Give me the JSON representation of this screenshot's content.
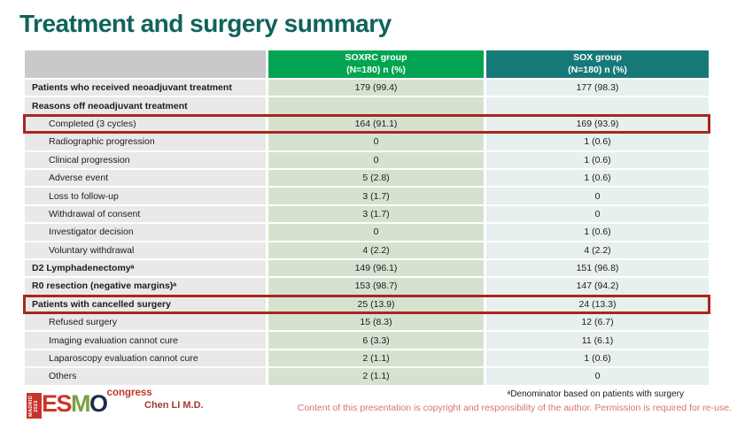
{
  "title": "Treatment and surgery summary",
  "table": {
    "columns": [
      {
        "line1": "SOXRC group",
        "line2": "(N=180)  n (%)"
      },
      {
        "line1": "SOX group",
        "line2": "(N=180)  n (%)"
      }
    ],
    "rows": [
      {
        "label": "Patients who received neoadjuvant treatment",
        "soxrc": "179 (99.4)",
        "sox": "177 (98.3)",
        "bold": true,
        "indent": false,
        "boxed": false
      },
      {
        "label": "Reasons off neoadjuvant treatment",
        "soxrc": "",
        "sox": "",
        "bold": true,
        "indent": false,
        "boxed": false
      },
      {
        "label": "Completed (3 cycles)",
        "soxrc": "164 (91.1)",
        "sox": "169 (93.9)",
        "bold": false,
        "indent": true,
        "boxed": true
      },
      {
        "label": "Radiographic progression",
        "soxrc": "0",
        "sox": "1 (0.6)",
        "bold": false,
        "indent": true,
        "boxed": false
      },
      {
        "label": "Clinical progression",
        "soxrc": "0",
        "sox": "1 (0.6)",
        "bold": false,
        "indent": true,
        "boxed": false
      },
      {
        "label": "Adverse event",
        "soxrc": "5 (2.8)",
        "sox": "1 (0.6)",
        "bold": false,
        "indent": true,
        "boxed": false
      },
      {
        "label": "Loss to follow-up",
        "soxrc": "3 (1.7)",
        "sox": "0",
        "bold": false,
        "indent": true,
        "boxed": false
      },
      {
        "label": "Withdrawal of consent",
        "soxrc": "3 (1.7)",
        "sox": "0",
        "bold": false,
        "indent": true,
        "boxed": false
      },
      {
        "label": "Investigator decision",
        "soxrc": "0",
        "sox": "1 (0.6)",
        "bold": false,
        "indent": true,
        "boxed": false
      },
      {
        "label": "Voluntary withdrawal",
        "soxrc": "4 (2.2)",
        "sox": "4 (2.2)",
        "bold": false,
        "indent": true,
        "boxed": false
      },
      {
        "label": "D2 Lymphadenectomyᵃ",
        "soxrc": "149 (96.1)",
        "sox": "151 (96.8)",
        "bold": true,
        "indent": false,
        "boxed": false
      },
      {
        "label": "R0 resection (negative margins)ᵃ",
        "soxrc": "153 (98.7)",
        "sox": "147 (94.2)",
        "bold": true,
        "indent": false,
        "boxed": false
      },
      {
        "label": "Patients with cancelled surgery",
        "soxrc": "25 (13.9)",
        "sox": "24 (13.3)",
        "bold": true,
        "indent": false,
        "boxed": true
      },
      {
        "label": "Refused surgery",
        "soxrc": "15 (8.3)",
        "sox": "12 (6.7)",
        "bold": false,
        "indent": true,
        "boxed": false
      },
      {
        "label": "Imaging evaluation cannot cure",
        "soxrc": "6 (3.3)",
        "sox": "11 (6.1)",
        "bold": false,
        "indent": true,
        "boxed": false
      },
      {
        "label": "Laparoscopy evaluation cannot cure",
        "soxrc": "2 (1.1)",
        "sox": "1 (0.6)",
        "bold": false,
        "indent": true,
        "boxed": false
      },
      {
        "label": "Others",
        "soxrc": "2 (1.1)",
        "sox": "0",
        "bold": false,
        "indent": true,
        "boxed": false
      }
    ]
  },
  "footer": {
    "logo": {
      "madrid_line1": "MADRID",
      "madrid_line2": "2023",
      "congress": "congress",
      "esmo_letters": [
        {
          "ch": "E",
          "color": "#cd3529"
        },
        {
          "ch": "S",
          "color": "#cd3529"
        },
        {
          "ch": "M",
          "color": "#76a23e"
        },
        {
          "ch": "O",
          "color": "#1e2c4f"
        }
      ]
    },
    "presenter": "Chen LI M.D.",
    "footnote": "ᵃDenominator based on patients with surgery",
    "copyright": "Content of this presentation is copyright and responsibility of the author. Permission is required for re-use."
  },
  "colors": {
    "title": "#0f635a",
    "header_soxrc": "#02a451",
    "header_sox": "#177878",
    "header_label": "#c9c9c9",
    "cell_label": "#e9e9e9",
    "cell_soxrc": "#d6e2d0",
    "cell_sox": "#e7f0ee",
    "highlight_box": "#a8271f",
    "presenter_text": "#a23a2e",
    "copyright_text": "#d9736d"
  }
}
